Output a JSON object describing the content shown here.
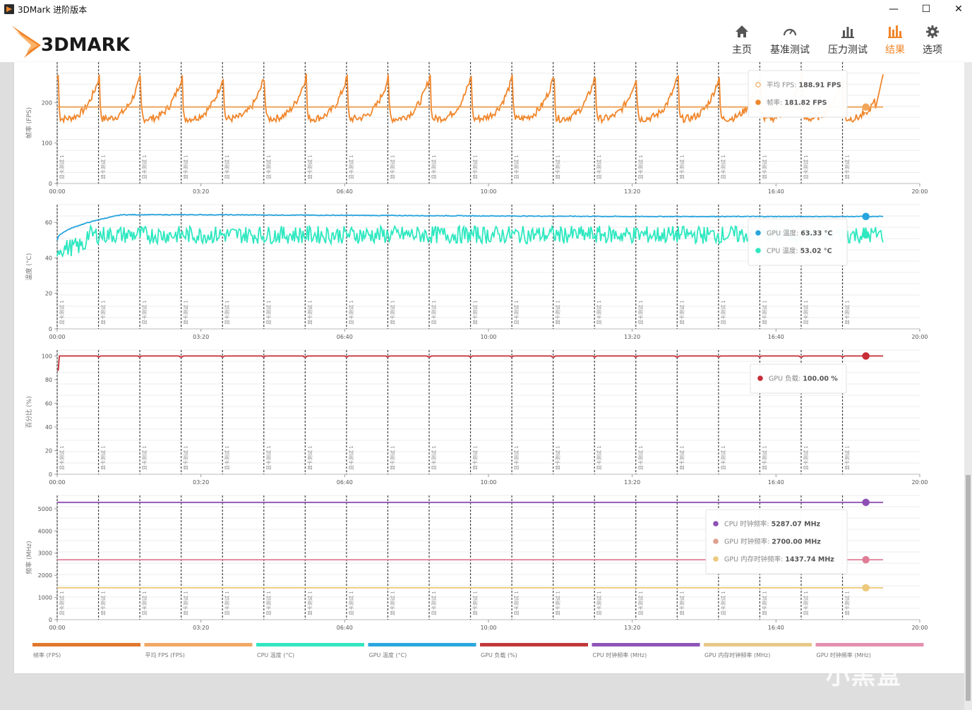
{
  "window": {
    "title": "3DMark 进阶版本",
    "minimize": "—",
    "maximize": "☐",
    "close": "✕"
  },
  "brand": {
    "logo_text": "3DMARK",
    "accent": "#f0862b"
  },
  "nav": [
    {
      "label": "主页",
      "icon": "home-icon",
      "active": false
    },
    {
      "label": "基准测试",
      "icon": "gauge-icon",
      "active": false
    },
    {
      "label": "压力测试",
      "icon": "bar-chart-icon",
      "active": false
    },
    {
      "label": "结果",
      "icon": "results-icon",
      "active": true
    },
    {
      "label": "选项",
      "icon": "gear-icon",
      "active": false
    }
  ],
  "marker_label": "显卡测试 1",
  "watermark": "小黑盒",
  "chart_data": [
    {
      "type": "line",
      "ylabel": "帧率 (FPS)",
      "ylim": [
        0,
        300
      ],
      "yticks": [
        0,
        100,
        200
      ],
      "xticks": [
        "00:00",
        "03:20",
        "06:40",
        "10:00",
        "13:20",
        "16:40",
        "20:00"
      ],
      "xlim_seconds": [
        0,
        1200
      ],
      "series": [
        {
          "name": "帧率",
          "color": "#f0862b",
          "pattern": "sawtooth",
          "base": 160,
          "peak": 270,
          "period_s": 57.5,
          "last": 181.82
        },
        {
          "name": "平均 FPS",
          "color": "#f2a65a",
          "pattern": "flat",
          "value": 188.91
        }
      ],
      "tooltip": [
        {
          "label": "平均 FPS: ",
          "value": "188.91 FPS",
          "color": "#f2a65a",
          "hollow": true
        },
        {
          "label": "帧率: ",
          "value": "181.82 FPS",
          "color": "#f0862b",
          "hollow": false
        }
      ]
    },
    {
      "type": "line",
      "ylabel": "温度 (°C)",
      "ylim": [
        0,
        70
      ],
      "yticks": [
        0,
        20,
        40,
        60
      ],
      "xticks": [
        "00:00",
        "03:20",
        "06:40",
        "10:00",
        "13:20",
        "16:40",
        "20:00"
      ],
      "xlim_seconds": [
        0,
        1200
      ],
      "series": [
        {
          "name": "GPU 温度",
          "color": "#27a4dd",
          "pattern": "rise",
          "start": 50,
          "value": 63.33,
          "noise": 0.4
        },
        {
          "name": "CPU 温度",
          "color": "#2ee8c0",
          "pattern": "noisy",
          "start": 45,
          "value": 53.02,
          "noise": 5
        }
      ],
      "tooltip": [
        {
          "label": "GPU 温度: ",
          "value": "63.33 °C",
          "color": "#27a4dd",
          "hollow": false
        },
        {
          "label": "CPU 温度: ",
          "value": "53.02 °C",
          "color": "#2ee8c0",
          "hollow": false
        }
      ]
    },
    {
      "type": "line",
      "ylabel": "百分比 (%)",
      "ylim": [
        0,
        105
      ],
      "yticks": [
        0,
        20,
        40,
        60,
        80,
        100
      ],
      "xticks": [
        "00:00",
        "03:20",
        "06:40",
        "10:00",
        "13:20",
        "16:40",
        "20:00"
      ],
      "xlim_seconds": [
        0,
        1200
      ],
      "series": [
        {
          "name": "GPU 负载",
          "color": "#c62d36",
          "pattern": "flat-dips",
          "start": 88,
          "value": 100.0
        }
      ],
      "tooltip": [
        {
          "label": "GPU 负载: ",
          "value": "100.00 %",
          "color": "#c62d36",
          "hollow": false
        }
      ]
    },
    {
      "type": "line",
      "ylabel": "频率 (MHz)",
      "ylim": [
        0,
        5600
      ],
      "yticks": [
        0,
        1000,
        2000,
        3000,
        4000,
        5000
      ],
      "xticks": [
        "00:00",
        "03:20",
        "06:40",
        "10:00",
        "13:20",
        "16:40",
        "20:00"
      ],
      "xlim_seconds": [
        0,
        1200
      ],
      "series": [
        {
          "name": "CPU 时钟频率",
          "color": "#8e4fb5",
          "pattern": "flat",
          "value": 5287.07
        },
        {
          "name": "GPU 时钟频率",
          "color": "#e07e97",
          "pattern": "flat",
          "value": 2700.0
        },
        {
          "name": "GPU 内存时钟频率",
          "color": "#ecc97c",
          "pattern": "flat",
          "value": 1437.74
        }
      ],
      "tooltip": [
        {
          "label": "CPU 时钟频率: ",
          "value": "5287.07 MHz",
          "color": "#8e4fb5",
          "hollow": false
        },
        {
          "label": "GPU 时钟频率: ",
          "value": "2700.00 MHz",
          "color": "#e0a090",
          "hollow": false
        },
        {
          "label": "GPU 内存时钟频率: ",
          "value": "1437.74 MHz",
          "color": "#ecc97c",
          "hollow": false
        }
      ]
    }
  ],
  "legend": [
    {
      "label": "帧率 (FPS)",
      "color": "#e0782c"
    },
    {
      "label": "平均 FPS (FPS)",
      "color": "#f0a865"
    },
    {
      "label": "CPU 温度 (°C)",
      "color": "#33e6c1"
    },
    {
      "label": "GPU 温度 (°C)",
      "color": "#2ba6e0"
    },
    {
      "label": "GPU 负载 (%)",
      "color": "#c0393d"
    },
    {
      "label": "CPU 时钟频率 (MHz)",
      "color": "#8e55b8"
    },
    {
      "label": "GPU 内存时钟频率 (MHz)",
      "color": "#e8c988"
    },
    {
      "label": "GPU 时钟频率 (MHz)",
      "color": "#e38fb0"
    }
  ]
}
